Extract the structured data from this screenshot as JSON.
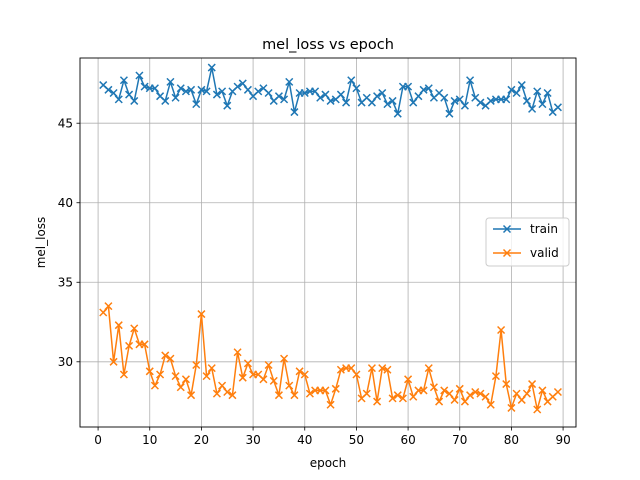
{
  "chart_data": {
    "type": "line",
    "title": "mel_loss vs epoch",
    "xlabel": "epoch",
    "ylabel": "mel_loss",
    "xlim": [
      -3.5,
      92.5
    ],
    "ylim": [
      25.9,
      49.1
    ],
    "xticks": [
      0,
      10,
      20,
      30,
      40,
      50,
      60,
      70,
      80,
      90
    ],
    "yticks": [
      30,
      35,
      40,
      45
    ],
    "grid": true,
    "legend_position": "center-right",
    "marker": "x",
    "x": [
      1,
      2,
      3,
      4,
      5,
      6,
      7,
      8,
      9,
      10,
      11,
      12,
      13,
      14,
      15,
      16,
      17,
      18,
      19,
      20,
      21,
      22,
      23,
      24,
      25,
      26,
      27,
      28,
      29,
      30,
      31,
      32,
      33,
      34,
      35,
      36,
      37,
      38,
      39,
      40,
      41,
      42,
      43,
      44,
      45,
      46,
      47,
      48,
      49,
      50,
      51,
      52,
      53,
      54,
      55,
      56,
      57,
      58,
      59,
      60,
      61,
      62,
      63,
      64,
      65,
      66,
      67,
      68,
      69,
      70,
      71,
      72,
      73,
      74,
      75,
      76,
      77,
      78,
      79,
      80,
      81,
      82,
      83,
      84,
      85,
      86,
      87,
      88,
      89
    ],
    "series": [
      {
        "name": "train",
        "color": "#1f77b4",
        "values": [
          47.4,
          47.1,
          46.9,
          46.5,
          47.7,
          46.8,
          46.4,
          48.0,
          47.3,
          47.2,
          47.2,
          46.7,
          46.4,
          47.6,
          46.6,
          47.2,
          47.0,
          47.1,
          46.2,
          47.1,
          47.0,
          48.5,
          46.8,
          47.0,
          46.1,
          47.0,
          47.3,
          47.5,
          47.1,
          46.7,
          47.0,
          47.2,
          46.9,
          46.4,
          46.7,
          46.5,
          47.6,
          45.7,
          46.9,
          46.9,
          47.0,
          47.0,
          46.6,
          46.8,
          46.4,
          46.5,
          46.8,
          46.3,
          47.7,
          47.2,
          46.3,
          46.6,
          46.3,
          46.7,
          46.9,
          46.2,
          46.4,
          45.6,
          47.3,
          47.3,
          46.3,
          46.7,
          47.1,
          47.2,
          46.6,
          46.9,
          46.6,
          45.6,
          46.4,
          46.5,
          46.1,
          47.7,
          46.6,
          46.3,
          46.1,
          46.4,
          46.5,
          46.5,
          46.5,
          47.1,
          46.9,
          47.4,
          46.4,
          45.9,
          47.0,
          46.2,
          46.9,
          45.7,
          46.0
        ]
      },
      {
        "name": "valid",
        "color": "#ff7f0e",
        "values": [
          33.1,
          33.5,
          30.0,
          32.3,
          29.2,
          31.0,
          32.1,
          31.1,
          31.1,
          29.4,
          28.5,
          29.2,
          30.4,
          30.2,
          29.1,
          28.4,
          28.9,
          27.9,
          29.8,
          33.0,
          29.1,
          29.6,
          28.0,
          28.5,
          28.1,
          27.9,
          30.6,
          29.0,
          29.9,
          29.2,
          29.2,
          28.9,
          29.8,
          28.8,
          27.9,
          30.2,
          28.5,
          27.9,
          29.4,
          29.2,
          28.0,
          28.2,
          28.2,
          28.2,
          27.3,
          28.3,
          29.5,
          29.6,
          29.6,
          29.2,
          27.7,
          28.0,
          29.6,
          27.5,
          29.6,
          29.5,
          27.7,
          27.9,
          27.7,
          28.9,
          27.8,
          28.2,
          28.2,
          29.6,
          28.4,
          27.5,
          28.2,
          28.0,
          27.6,
          28.3,
          27.5,
          27.9,
          28.1,
          28.0,
          27.8,
          27.3,
          29.1,
          32.0,
          28.6,
          27.1,
          28.0,
          27.6,
          28.0,
          28.6,
          27.0,
          28.2,
          27.5,
          27.8,
          28.1
        ]
      }
    ]
  }
}
